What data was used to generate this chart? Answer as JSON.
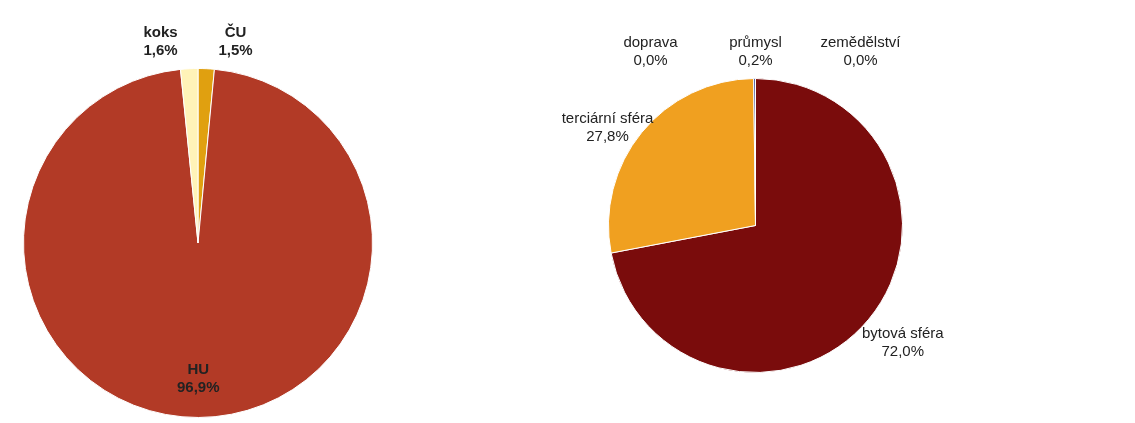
{
  "chart_data": [
    {
      "type": "pie",
      "categories": [
        "ČU",
        "HU",
        "koks"
      ],
      "values": [
        1.5,
        96.9,
        1.6
      ],
      "colors": [
        "#e0a010",
        "#b23a26",
        "#fff3b8"
      ],
      "value_labels": [
        "1,5%",
        "96,9%",
        "1,6%"
      ]
    },
    {
      "type": "pie",
      "categories": [
        "zemědělství",
        "bytová sféra",
        "terciární sféra",
        "doprava",
        "průmysl"
      ],
      "values": [
        0.0,
        72.0,
        27.8,
        0.0,
        0.2
      ],
      "colors": [
        "#9bbb59",
        "#7a0c0c",
        "#f0a020",
        "#4f81bd",
        "#3c4a94"
      ],
      "value_labels": [
        "0,0%",
        "72,0%",
        "27,8%",
        "0,0%",
        "0,2%"
      ]
    }
  ]
}
